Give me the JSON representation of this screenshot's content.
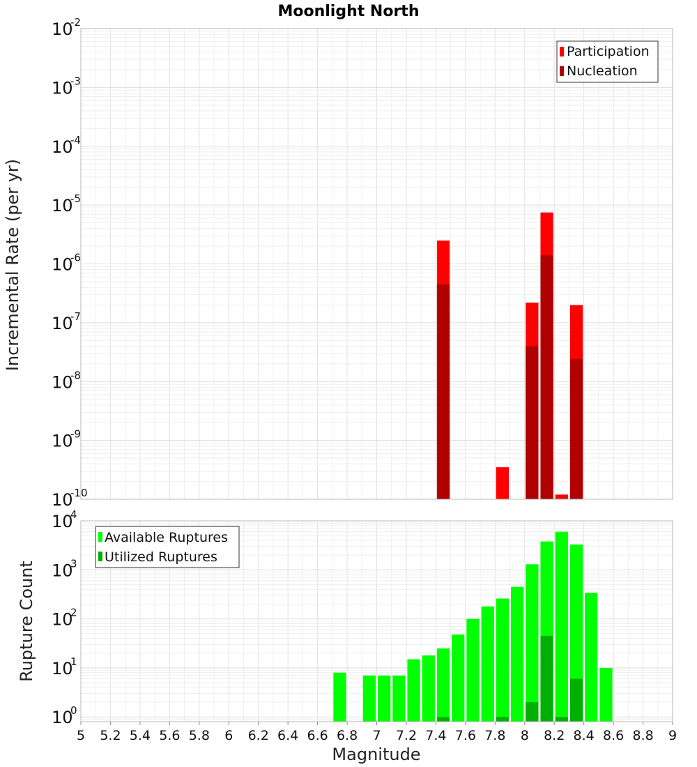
{
  "chart_data": {
    "title": "Moonlight North",
    "xlabel": "Magnitude",
    "xlim": [
      5,
      9
    ],
    "x_ticks": [
      5,
      5.2,
      5.4,
      5.6,
      5.8,
      6,
      6.2,
      6.4,
      6.6,
      6.8,
      7,
      7.2,
      7.4,
      7.6,
      7.8,
      8,
      8.2,
      8.4,
      8.6,
      8.8,
      9
    ],
    "x_tick_labels": [
      "5",
      "5.2",
      "5.4",
      "5.6",
      "5.8",
      "6",
      "6.2",
      "6.4",
      "6.6",
      "6.8",
      "7",
      "7.2",
      "7.4",
      "7.6",
      "7.8",
      "8",
      "8.2",
      "8.4",
      "8.6",
      "8.8",
      "9"
    ],
    "grid": true,
    "panels": [
      {
        "type": "bar",
        "ylabel": "Incremental Rate (per yr)",
        "yscale": "log",
        "ylim": [
          1e-10,
          0.01
        ],
        "y_tick_exponents": [
          -10,
          -9,
          -8,
          -7,
          -6,
          -5,
          -4,
          -3,
          -2
        ],
        "legend_position": "top-right",
        "series": [
          {
            "name": "Participation",
            "color": "#ff0000",
            "x": [
              7.45,
              7.85,
              8.05,
              8.15,
              8.25,
              8.35
            ],
            "values": [
              2.5e-06,
              3.5e-10,
              2.2e-07,
              7.5e-06,
              1.2e-10,
              2e-07
            ]
          },
          {
            "name": "Nucleation",
            "color": "#b00000",
            "x": [
              7.45,
              8.05,
              8.15,
              8.35
            ],
            "values": [
              4.5e-07,
              4e-08,
              1.4e-06,
              2.4e-08
            ]
          }
        ]
      },
      {
        "type": "bar",
        "ylabel": "Rupture Count",
        "yscale": "log",
        "ylim": [
          0.8,
          10000
        ],
        "y_tick_exponents": [
          0,
          1,
          2,
          3,
          4
        ],
        "legend_position": "top-left",
        "series": [
          {
            "name": "Available Ruptures",
            "color": "#00ff00",
            "x": [
              6.75,
              6.95,
              7.05,
              7.15,
              7.25,
              7.35,
              7.45,
              7.55,
              7.65,
              7.75,
              7.85,
              7.95,
              8.05,
              8.15,
              8.25,
              8.35,
              8.45,
              8.55
            ],
            "values": [
              8,
              7,
              7,
              7,
              15,
              18,
              25,
              48,
              100,
              180,
              260,
              450,
              1300,
              3800,
              6000,
              3300,
              340,
              10
            ]
          },
          {
            "name": "Utilized Ruptures",
            "color": "#00b000",
            "x": [
              7.45,
              7.85,
              8.05,
              8.15,
              8.25,
              8.35
            ],
            "values": [
              1,
              1,
              2,
              45,
              1,
              6
            ]
          }
        ]
      }
    ]
  }
}
